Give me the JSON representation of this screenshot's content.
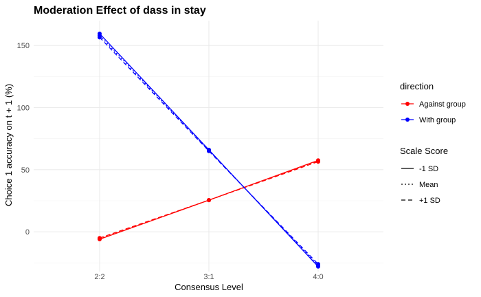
{
  "chart_data": {
    "type": "line",
    "title": "Moderation Effect of dass in stay",
    "xlabel": "Consensus Level",
    "ylabel": "Choice 1 accuracy on t + 1 (%)",
    "categories": [
      "2:2",
      "3:1",
      "4:0"
    ],
    "ylim": [
      -32,
      170
    ],
    "yticks": [
      0,
      50,
      100,
      150
    ],
    "grid": true,
    "legend_position": "right",
    "colors": {
      "Against group": "#ff0000",
      "With group": "#0000ff"
    },
    "legends": [
      {
        "title": "direction",
        "entries": [
          {
            "label": "Against group",
            "color": "#ff0000",
            "kind": "point-line"
          },
          {
            "label": "With group",
            "color": "#0000ff",
            "kind": "point-line"
          }
        ]
      },
      {
        "title": "Scale Score",
        "entries": [
          {
            "label": "-1 SD",
            "dash": "solid",
            "kind": "line"
          },
          {
            "label": "Mean",
            "dash": "dotted",
            "kind": "line"
          },
          {
            "label": "+1 SD",
            "dash": "dashed",
            "kind": "line"
          }
        ]
      }
    ],
    "series": [
      {
        "direction": "Against group",
        "scale": "-1 SD",
        "dash": "solid",
        "values": [
          -6,
          25.5,
          57.5
        ]
      },
      {
        "direction": "Against group",
        "scale": "Mean",
        "dash": "dotted",
        "values": [
          -5.5,
          25.5,
          57
        ]
      },
      {
        "direction": "Against group",
        "scale": "+1 SD",
        "dash": "dashed",
        "values": [
          -5,
          25.5,
          56.5
        ]
      },
      {
        "direction": "With group",
        "scale": "-1 SD",
        "dash": "solid",
        "values": [
          159.5,
          66,
          -28
        ]
      },
      {
        "direction": "With group",
        "scale": "Mean",
        "dash": "dotted",
        "values": [
          158,
          65.5,
          -27
        ]
      },
      {
        "direction": "With group",
        "scale": "+1 SD",
        "dash": "dashed",
        "values": [
          156.5,
          65,
          -26
        ]
      }
    ]
  }
}
